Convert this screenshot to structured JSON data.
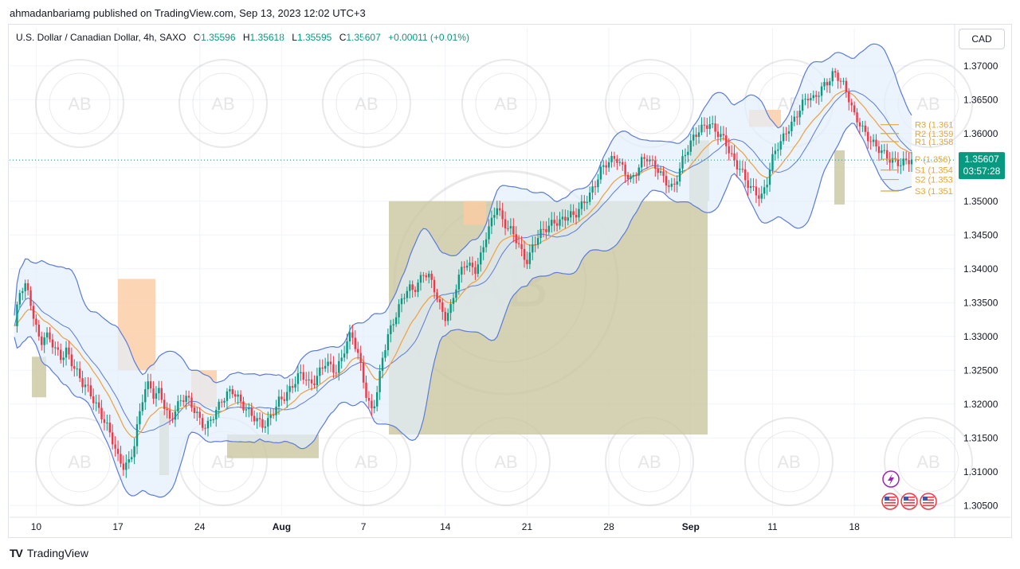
{
  "header": {
    "published_line": "ahmadanbariamg published on TradingView.com, Sep 13, 2023 12:02 UTC+3"
  },
  "legend": {
    "symbol": "U.S. Dollar / Canadian Dollar, 4h, SAXO",
    "o_label": "O",
    "o_value": "1.35596",
    "h_label": "H",
    "h_value": "1.35618",
    "l_label": "L",
    "l_value": "1.35595",
    "c_label": "C",
    "c_value": "1.35607",
    "change": "+0.00011 (+0.01%)"
  },
  "currency_button": "CAD",
  "price_badge": {
    "price": "1.35607",
    "countdown": "03:57:28"
  },
  "pivots": [
    {
      "label": "R3 (1.361",
      "value": 1.3613
    },
    {
      "label": "R2 (1.359",
      "value": 1.36
    },
    {
      "label": "R1 (1.358",
      "value": 1.3588
    },
    {
      "label": "P (1.356)",
      "value": 1.3562
    },
    {
      "label": "S1 (1.354",
      "value": 1.3546
    },
    {
      "label": "S2 (1.353",
      "value": 1.3532
    },
    {
      "label": "S3 (1.351",
      "value": 1.3515
    }
  ],
  "footer": {
    "brand": "TradingView",
    "logo": "TV"
  },
  "watermark": {
    "monogram": "AB",
    "text": "ARABIAN BUSINESS ACADEMY"
  },
  "icons": [
    "lightning-icon",
    "us-flag-icon",
    "us-flag-icon",
    "us-flag-icon"
  ],
  "colors": {
    "up": "#089981",
    "down": "#f23645",
    "band": "#5b7bd8",
    "band_fill": "#e3eefb",
    "ema": "#f0a040",
    "pivot": "#e5a634",
    "zone": "#c9c7a0",
    "supply": "#fbcaa3"
  },
  "chart_data": {
    "type": "candlestick",
    "title": "U.S. Dollar / Canadian Dollar, 4h, SAXO",
    "y_axis": {
      "ticks": [
        "1.37000",
        "1.36500",
        "1.36000",
        "1.35500",
        "1.35000",
        "1.34500",
        "1.34000",
        "1.33500",
        "1.33000",
        "1.32500",
        "1.32000",
        "1.31500",
        "1.31000",
        "1.30500"
      ],
      "range": [
        1.3035,
        1.3715
      ]
    },
    "x_axis": {
      "ticks": [
        "10",
        "17",
        "24",
        "Aug",
        "7",
        "14",
        "21",
        "28",
        "Sep",
        "11",
        "18"
      ],
      "tick_positions_index": [
        8,
        38,
        68,
        98,
        128,
        158,
        188,
        218,
        248,
        278,
        308
      ]
    },
    "close_series": [
      1.3315,
      1.3365,
      1.3378,
      1.3355,
      1.3318,
      1.329,
      1.3302,
      1.3295,
      1.328,
      1.3268,
      1.3279,
      1.3262,
      1.3248,
      1.3232,
      1.3225,
      1.321,
      1.3195,
      1.318,
      1.3165,
      1.3145,
      1.312,
      1.3108,
      1.3112,
      1.3135,
      1.318,
      1.322,
      1.323,
      1.321,
      1.322,
      1.3195,
      1.3175,
      1.319,
      1.3205,
      1.3212,
      1.32,
      1.3188,
      1.3172,
      1.3165,
      1.3178,
      1.3192,
      1.3205,
      1.3215,
      1.322,
      1.321,
      1.3198,
      1.319,
      1.3182,
      1.3175,
      1.3168,
      1.3175,
      1.319,
      1.3205,
      1.321,
      1.322,
      1.3232,
      1.3245,
      1.324,
      1.3228,
      1.3235,
      1.325,
      1.3262,
      1.3255,
      1.3248,
      1.3265,
      1.329,
      1.3305,
      1.328,
      1.325,
      1.3205,
      1.319,
      1.322,
      1.327,
      1.33,
      1.332,
      1.334,
      1.336,
      1.3372,
      1.3368,
      1.338,
      1.3395,
      1.3388,
      1.337,
      1.3345,
      1.3328,
      1.3338,
      1.337,
      1.3395,
      1.341,
      1.3402,
      1.3398,
      1.342,
      1.345,
      1.347,
      1.3495,
      1.3472,
      1.3462,
      1.3455,
      1.344,
      1.342,
      1.341,
      1.3435,
      1.3448,
      1.3458,
      1.3462,
      1.347,
      1.3468,
      1.3475,
      1.348,
      1.3478,
      1.349,
      1.35,
      1.351,
      1.3525,
      1.3545,
      1.3555,
      1.356,
      1.3565,
      1.3552,
      1.354,
      1.353,
      1.3545,
      1.356,
      1.3565,
      1.3555,
      1.3548,
      1.3535,
      1.3525,
      1.3518,
      1.354,
      1.3565,
      1.358,
      1.3595,
      1.3605,
      1.361,
      1.3615,
      1.3605,
      1.3598,
      1.359,
      1.357,
      1.3555,
      1.3548,
      1.353,
      1.352,
      1.3512,
      1.3505,
      1.3525,
      1.356,
      1.358,
      1.359,
      1.3605,
      1.3615,
      1.363,
      1.3645,
      1.3655,
      1.365,
      1.366,
      1.367,
      1.3678,
      1.369,
      1.3682,
      1.367,
      1.365,
      1.3625,
      1.3615,
      1.36,
      1.359,
      1.3582,
      1.3575,
      1.3568,
      1.356,
      1.3558,
      1.3555,
      1.356,
      1.3561
    ]
  }
}
